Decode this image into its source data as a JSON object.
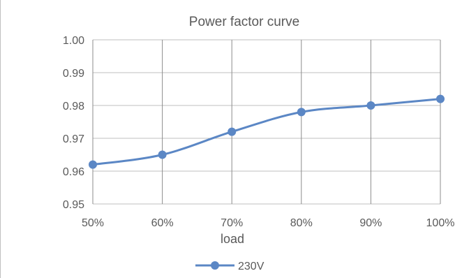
{
  "chart_data": {
    "type": "line",
    "title": "Power factor curve",
    "xlabel": "load",
    "ylabel": "",
    "categories": [
      "50%",
      "60%",
      "70%",
      "80%",
      "90%",
      "100%"
    ],
    "ylim": [
      0.95,
      1.0
    ],
    "yticks": [
      "0.95",
      "0.96",
      "0.97",
      "0.98",
      "0.99",
      "1.00"
    ],
    "series": [
      {
        "name": "230V",
        "values": [
          0.962,
          0.965,
          0.972,
          0.978,
          0.98,
          0.982
        ],
        "color": "#5b87c5"
      }
    ],
    "grid": true,
    "smooth": true,
    "legend": "bottom"
  }
}
